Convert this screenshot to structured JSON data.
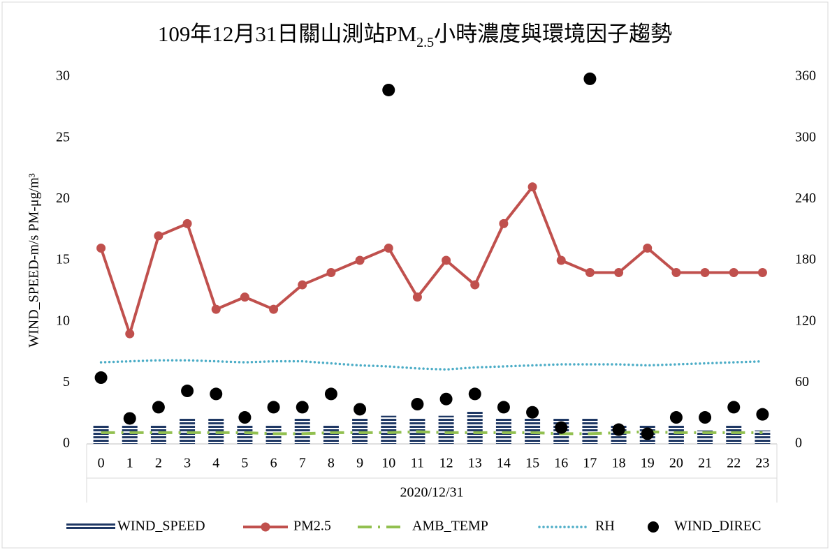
{
  "chart_data": {
    "type": "combo",
    "title": {
      "main": "109年12月31日關山測站PM",
      "sub": "2.5",
      "rest": "小時濃度與環境因子趨勢"
    },
    "y_label": "WIND_SPEED-m/s    PM-μg/m³",
    "group_label": "2020/12/31",
    "categories": [
      "0",
      "1",
      "2",
      "3",
      "4",
      "5",
      "6",
      "7",
      "8",
      "9",
      "10",
      "11",
      "12",
      "13",
      "14",
      "15",
      "16",
      "17",
      "18",
      "19",
      "20",
      "21",
      "22",
      "23"
    ],
    "ylim": [
      0,
      30
    ],
    "yticks": [
      0,
      5,
      10,
      15,
      20,
      25,
      30
    ],
    "y2lim": [
      0,
      360
    ],
    "y2ticks": [
      0,
      60,
      120,
      180,
      240,
      300,
      360
    ],
    "grid": false,
    "legend": "bottom",
    "series": [
      {
        "name": "WIND_SPEED",
        "style": "bar",
        "color": "#1f3864",
        "values": [
          1.5,
          1.6,
          1.6,
          2.1,
          2.1,
          1.6,
          1.6,
          2.1,
          1.6,
          2.1,
          2.3,
          2.1,
          2.3,
          2.7,
          2.1,
          2.1,
          2.1,
          2.1,
          1.6,
          1.5,
          1.6,
          1.1,
          1.6,
          1.1
        ]
      },
      {
        "name": "PM2.5",
        "style": "line-marker",
        "color": "#c0504d",
        "values": [
          16,
          9,
          17,
          18,
          11,
          12,
          11,
          13,
          14,
          15,
          16,
          12,
          15,
          13,
          18,
          21,
          15,
          14,
          14,
          16,
          14,
          14,
          14,
          14
        ]
      },
      {
        "name": "AMB_TEMP",
        "style": "dash-dot",
        "color": "#92c050",
        "axis": "y2",
        "values": [
          11,
          11,
          11,
          11,
          11,
          11,
          10,
          10,
          11,
          11,
          11,
          12,
          11,
          11,
          11,
          11,
          10,
          10,
          11,
          12,
          11,
          11,
          11,
          11
        ]
      },
      {
        "name": "RH",
        "style": "dots",
        "color": "#4bacc6",
        "axis": "y2",
        "values": [
          80,
          81,
          82,
          82,
          81,
          80,
          81,
          81,
          79,
          77,
          76,
          74,
          73,
          75,
          76,
          77,
          78,
          78,
          78,
          77,
          78,
          79,
          80,
          81
        ]
      },
      {
        "name": "WIND_DIREC",
        "style": "markers",
        "color": "#000000",
        "axis": "y2",
        "values": [
          65,
          25,
          36,
          52,
          49,
          26,
          36,
          36,
          49,
          34,
          347,
          39,
          44,
          49,
          36,
          31,
          16,
          358,
          14,
          10,
          26,
          26,
          36,
          29
        ]
      }
    ]
  }
}
